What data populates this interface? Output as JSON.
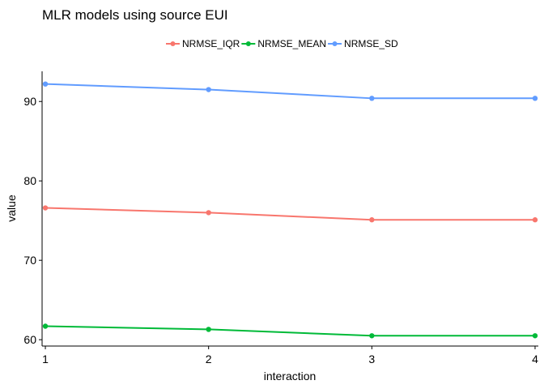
{
  "chart_data": {
    "type": "line",
    "title": "MLR models using source EUI",
    "xlabel": "interaction",
    "ylabel": "value",
    "x": [
      1,
      2,
      3,
      4
    ],
    "xticks": [
      "1",
      "2",
      "3",
      "4"
    ],
    "yticks": [
      "60",
      "70",
      "80",
      "90"
    ],
    "xlim": [
      0.98,
      4.02
    ],
    "ylim": [
      59.2,
      93.8
    ],
    "legend_position": "top",
    "grid": false,
    "series": [
      {
        "name": "NRMSE_IQR",
        "color": "#F8766D",
        "values": [
          76.6,
          76.0,
          75.1,
          75.1
        ]
      },
      {
        "name": "NRMSE_MEAN",
        "color": "#00BA38",
        "values": [
          61.7,
          61.3,
          60.5,
          60.5
        ]
      },
      {
        "name": "NRMSE_SD",
        "color": "#619CFF",
        "values": [
          92.2,
          91.5,
          90.4,
          90.4
        ]
      }
    ]
  }
}
